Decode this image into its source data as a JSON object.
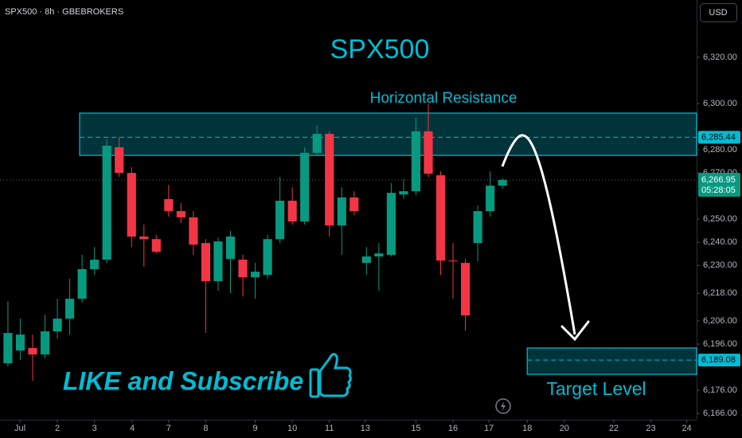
{
  "chart_data": {
    "type": "candlestick",
    "title": "SPX500",
    "symbol_info": "SPX500 · 8h · GBEBROKERS",
    "currency": "USD",
    "up_color": "#089981",
    "down_color": "#f23645",
    "accent_color": "#00bcd4",
    "grid": false,
    "xlim": [
      -0.64,
      55.7
    ],
    "xticks": [
      {
        "value": 0.97,
        "label": "Jul"
      },
      {
        "value": 4,
        "label": "2"
      },
      {
        "value": 7,
        "label": "3"
      },
      {
        "value": 10.05,
        "label": "4"
      },
      {
        "value": 13,
        "label": "7"
      },
      {
        "value": 16,
        "label": "8"
      },
      {
        "value": 20,
        "label": "9"
      },
      {
        "value": 23,
        "label": "10"
      },
      {
        "value": 26,
        "label": "11"
      },
      {
        "value": 28.9,
        "label": "13"
      },
      {
        "value": 33,
        "label": "15"
      },
      {
        "value": 36,
        "label": "16"
      },
      {
        "value": 38.9,
        "label": "17"
      },
      {
        "value": 42,
        "label": "18"
      },
      {
        "value": 45,
        "label": "20"
      },
      {
        "value": 49,
        "label": "22"
      },
      {
        "value": 52,
        "label": "23"
      },
      {
        "value": 54.9,
        "label": "24"
      }
    ],
    "ylim": [
      6163.3,
      6344.8
    ],
    "yticks": [
      {
        "value": 6166,
        "label": "6,166.00"
      },
      {
        "value": 6176,
        "label": "6,176.00"
      },
      {
        "value": 6196,
        "label": "6,196.00"
      },
      {
        "value": 6206,
        "label": "6,206.00"
      },
      {
        "value": 6218,
        "label": "6,218.00"
      },
      {
        "value": 6230,
        "label": "6,230.00"
      },
      {
        "value": 6240,
        "label": "6,240.00"
      },
      {
        "value": 6250,
        "label": "6,250.00"
      },
      {
        "value": 6270,
        "label": "6,270.00"
      },
      {
        "value": 6280,
        "label": "6,280.00"
      },
      {
        "value": 6300,
        "label": "6,300.00"
      },
      {
        "value": 6320,
        "label": "6,320.00"
      }
    ],
    "open": [
      6187.7,
      6193.2,
      6194.3,
      6191.5,
      6201.5,
      6207.0,
      6215.6,
      6228.4,
      6232.5,
      6281.1,
      6270.0,
      6242.5,
      6241.4,
      6258.7,
      6253.5,
      6250.8,
      6239.7,
      6223.2,
      6232.8,
      6232.5,
      6224.9,
      6225.9,
      6241.4,
      6258.0,
      6249.0,
      6278.7,
      6286.9,
      6247.3,
      6259.4,
      6231.1,
      6233.9,
      6234.6,
      6260.7,
      6262.1,
      6288.0,
      6269.0,
      6232.1,
      6231.1,
      6239.7,
      6253.5,
      6264.5
    ],
    "high": [
      6214.6,
      6207.0,
      6200.1,
      6208.7,
      6215.6,
      6224.2,
      6234.6,
      6238.0,
      6284.5,
      6285.5,
      6272.5,
      6247.7,
      6243.2,
      6264.9,
      6257.0,
      6253.5,
      6241.4,
      6242.1,
      6244.9,
      6234.6,
      6231.1,
      6243.2,
      6268.3,
      6263.8,
      6281.1,
      6290.4,
      6288.0,
      6263.8,
      6262.1,
      6238.0,
      6239.7,
      6265.6,
      6267.3,
      6293.8,
      6300.0,
      6270.7,
      6239.7,
      6232.8,
      6256.0,
      6270.7,
      6267.6
    ],
    "low": [
      6186.3,
      6189.1,
      6180.1,
      6189.8,
      6198.4,
      6200.1,
      6213.9,
      6225.9,
      6231.1,
      6268.3,
      6237.9,
      6229.4,
      6235.2,
      6251.1,
      6248.3,
      6234.6,
      6200.8,
      6219.1,
      6218.0,
      6216.6,
      6215.6,
      6224.2,
      6239.7,
      6247.7,
      6247.7,
      6277.6,
      6242.5,
      6234.6,
      6251.8,
      6225.9,
      6219.1,
      6233.9,
      6258.7,
      6260.4,
      6268.3,
      6225.9,
      6215.6,
      6201.8,
      6231.8,
      6251.1,
      6263.2
    ],
    "close": [
      6200.8,
      6200.1,
      6191.5,
      6201.5,
      6207.0,
      6215.6,
      6228.4,
      6232.5,
      6281.8,
      6270.0,
      6242.5,
      6241.4,
      6235.9,
      6253.5,
      6250.8,
      6239.0,
      6223.2,
      6240.4,
      6242.5,
      6224.9,
      6227.3,
      6241.4,
      6258.0,
      6249.0,
      6278.7,
      6286.9,
      6247.3,
      6259.4,
      6253.5,
      6233.9,
      6235.2,
      6261.4,
      6262.1,
      6288.0,
      6269.7,
      6232.1,
      6231.8,
      6208.4,
      6253.5,
      6264.5,
      6266.95
    ],
    "zones": [
      {
        "label": "Horizontal Resistance",
        "top": 6295.9,
        "bottom": 6277.6,
        "start": 5.8,
        "level": {
          "value": 6285.44,
          "label": "6,285.44"
        }
      },
      {
        "label": "Target Level",
        "top": 6194.3,
        "bottom": 6182.9,
        "start": 42.0,
        "level": {
          "value": 6189.08,
          "label": "6,189.08"
        }
      }
    ],
    "last_price": {
      "value": 6266.95,
      "label": "6,266.95"
    },
    "countdown": "05:28:05",
    "promo": "LIKE and Subscribe"
  }
}
